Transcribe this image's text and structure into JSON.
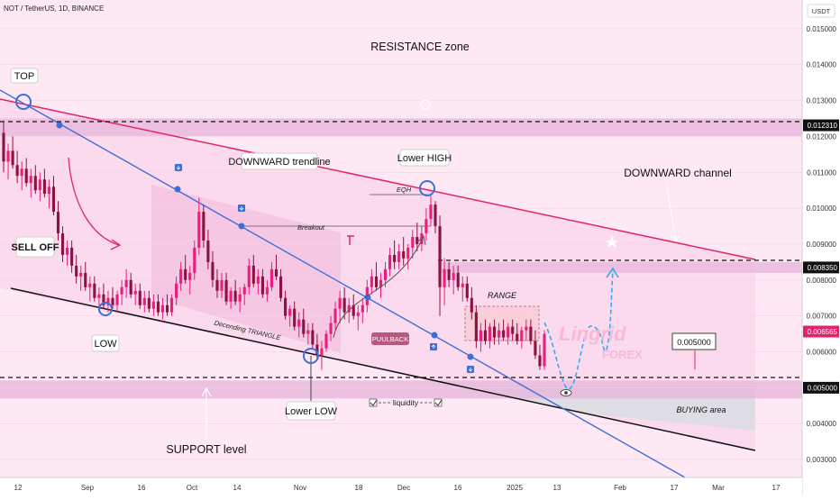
{
  "header": {
    "symbol": "NOT / TetherUS, 1D, BINANCE"
  },
  "colors": {
    "background": "#fde8f4",
    "up": "#e91e7e",
    "down": "#8c1240",
    "trend_blue": "#3e6fd8",
    "channel_red": "#e0246a",
    "support_black": "#111111",
    "zone": "#e9b8dc",
    "buying_area": "#dddde3",
    "price_tag": "#e0246a"
  },
  "chart_data": {
    "type": "candlestick",
    "currency": "USDT",
    "y_ticks": [
      "0.015000",
      "0.014000",
      "0.013000",
      "0.012000",
      "0.011000",
      "0.010000",
      "0.009000",
      "0.008000",
      "0.007000",
      "0.006000",
      "0.005000",
      "0.004000",
      "0.003000"
    ],
    "ylim": [
      0.0025,
      0.0158
    ],
    "x_ticks": [
      "12",
      "Sep",
      "16",
      "Oct",
      "14",
      "Nov",
      "18",
      "Dec",
      "16",
      "2025",
      "13",
      "Feb",
      "17",
      "Mar",
      "17"
    ],
    "price_tags": {
      "top_level": "0.012310",
      "mid_level": "0.008350",
      "current": "0.006565",
      "support": "0.005000"
    },
    "levels": {
      "resistance_band": [
        0.012,
        0.0125
      ],
      "mid_band": [
        0.0082,
        0.0085
      ],
      "support_band": [
        0.0047,
        0.0052
      ],
      "range_box": [
        0.0058,
        0.0069
      ]
    },
    "candles": [
      [
        0.0121,
        0.0124,
        0.011,
        0.0113
      ],
      [
        0.0113,
        0.0118,
        0.0108,
        0.0116
      ],
      [
        0.0116,
        0.012,
        0.0111,
        0.0112
      ],
      [
        0.0112,
        0.0116,
        0.0107,
        0.0109
      ],
      [
        0.0109,
        0.0113,
        0.0105,
        0.0111
      ],
      [
        0.0111,
        0.0114,
        0.0106,
        0.0107
      ],
      [
        0.0107,
        0.0111,
        0.0103,
        0.0109
      ],
      [
        0.0109,
        0.0112,
        0.0104,
        0.0105
      ],
      [
        0.0105,
        0.011,
        0.0102,
        0.0108
      ],
      [
        0.0108,
        0.0111,
        0.0103,
        0.0104
      ],
      [
        0.0104,
        0.0108,
        0.01,
        0.0106
      ],
      [
        0.0106,
        0.0109,
        0.0098,
        0.0099
      ],
      [
        0.0099,
        0.0102,
        0.0091,
        0.0093
      ],
      [
        0.0093,
        0.0095,
        0.0085,
        0.0087
      ],
      [
        0.0087,
        0.0091,
        0.0084,
        0.0089
      ],
      [
        0.0089,
        0.0091,
        0.0082,
        0.0084
      ],
      [
        0.0084,
        0.0087,
        0.0079,
        0.0081
      ],
      [
        0.0081,
        0.0084,
        0.0077,
        0.0082
      ],
      [
        0.0082,
        0.0085,
        0.0077,
        0.0078
      ],
      [
        0.0078,
        0.0081,
        0.0074,
        0.0079
      ],
      [
        0.0079,
        0.0081,
        0.0074,
        0.0075
      ],
      [
        0.0075,
        0.0078,
        0.0071,
        0.0076
      ],
      [
        0.0076,
        0.0079,
        0.0072,
        0.0073
      ],
      [
        0.0073,
        0.0077,
        0.0071,
        0.0075
      ],
      [
        0.0075,
        0.0078,
        0.0072,
        0.0073
      ],
      [
        0.0073,
        0.0077,
        0.0071,
        0.0076
      ],
      [
        0.0076,
        0.008,
        0.0073,
        0.0078
      ],
      [
        0.0078,
        0.0083,
        0.0075,
        0.008
      ],
      [
        0.008,
        0.0082,
        0.0075,
        0.0076
      ],
      [
        0.0076,
        0.0079,
        0.0073,
        0.0077
      ],
      [
        0.0077,
        0.0079,
        0.0072,
        0.0073
      ],
      [
        0.0073,
        0.0077,
        0.0071,
        0.0075
      ],
      [
        0.0075,
        0.0077,
        0.0071,
        0.0072
      ],
      [
        0.0072,
        0.0076,
        0.007,
        0.0074
      ],
      [
        0.0074,
        0.0076,
        0.007,
        0.0071
      ],
      [
        0.0071,
        0.0075,
        0.0069,
        0.0073
      ],
      [
        0.0073,
        0.0076,
        0.007,
        0.0071
      ],
      [
        0.0071,
        0.0076,
        0.007,
        0.0075
      ],
      [
        0.0075,
        0.0081,
        0.0073,
        0.0079
      ],
      [
        0.0079,
        0.0085,
        0.0077,
        0.0083
      ],
      [
        0.0083,
        0.0087,
        0.0079,
        0.008
      ],
      [
        0.008,
        0.0084,
        0.0076,
        0.0082
      ],
      [
        0.0082,
        0.0091,
        0.008,
        0.0089
      ],
      [
        0.0089,
        0.0103,
        0.0087,
        0.0099
      ],
      [
        0.0099,
        0.0101,
        0.0089,
        0.0091
      ],
      [
        0.0091,
        0.0094,
        0.0083,
        0.0085
      ],
      [
        0.0085,
        0.0088,
        0.0078,
        0.008
      ],
      [
        0.008,
        0.0083,
        0.0075,
        0.0077
      ],
      [
        0.0077,
        0.0082,
        0.0075,
        0.008
      ],
      [
        0.008,
        0.0082,
        0.0073,
        0.0074
      ],
      [
        0.0074,
        0.0078,
        0.0072,
        0.0077
      ],
      [
        0.0077,
        0.008,
        0.0073,
        0.0074
      ],
      [
        0.0074,
        0.0078,
        0.0071,
        0.0076
      ],
      [
        0.0076,
        0.0079,
        0.0073,
        0.0078
      ],
      [
        0.0078,
        0.0086,
        0.0076,
        0.0084
      ],
      [
        0.0084,
        0.0087,
        0.0078,
        0.0079
      ],
      [
        0.0079,
        0.0083,
        0.0076,
        0.0081
      ],
      [
        0.0081,
        0.0083,
        0.0075,
        0.0076
      ],
      [
        0.0076,
        0.008,
        0.0074,
        0.0078
      ],
      [
        0.0078,
        0.0085,
        0.0077,
        0.0083
      ],
      [
        0.0083,
        0.0087,
        0.008,
        0.0081
      ],
      [
        0.0081,
        0.0083,
        0.0074,
        0.0075
      ],
      [
        0.0075,
        0.0077,
        0.0069,
        0.007
      ],
      [
        0.007,
        0.0073,
        0.0067,
        0.0072
      ],
      [
        0.0072,
        0.0074,
        0.0066,
        0.0067
      ],
      [
        0.0067,
        0.0071,
        0.0064,
        0.0069
      ],
      [
        0.0069,
        0.0072,
        0.0064,
        0.0065
      ],
      [
        0.0065,
        0.0068,
        0.0062,
        0.0066
      ],
      [
        0.0066,
        0.0068,
        0.0061,
        0.0062
      ],
      [
        0.0062,
        0.0065,
        0.0058,
        0.0059
      ],
      [
        0.0059,
        0.0063,
        0.0055,
        0.0061
      ],
      [
        0.0061,
        0.0066,
        0.006,
        0.0065
      ],
      [
        0.0065,
        0.007,
        0.0063,
        0.0068
      ],
      [
        0.0068,
        0.0074,
        0.0066,
        0.0072
      ],
      [
        0.0072,
        0.0077,
        0.0068,
        0.0075
      ],
      [
        0.0075,
        0.0078,
        0.0069,
        0.0071
      ],
      [
        0.0071,
        0.0075,
        0.0068,
        0.0073
      ],
      [
        0.0073,
        0.0076,
        0.0069,
        0.007
      ],
      [
        0.007,
        0.0073,
        0.0066,
        0.0071
      ],
      [
        0.0071,
        0.0075,
        0.0068,
        0.0073
      ],
      [
        0.0073,
        0.008,
        0.0071,
        0.0078
      ],
      [
        0.0078,
        0.0083,
        0.0076,
        0.0081
      ],
      [
        0.0081,
        0.0085,
        0.0077,
        0.0078
      ],
      [
        0.0078,
        0.0082,
        0.0075,
        0.008
      ],
      [
        0.008,
        0.0085,
        0.0078,
        0.0083
      ],
      [
        0.0083,
        0.0089,
        0.0081,
        0.0087
      ],
      [
        0.0087,
        0.0091,
        0.0083,
        0.0085
      ],
      [
        0.0085,
        0.009,
        0.0083,
        0.0088
      ],
      [
        0.0088,
        0.0092,
        0.0084,
        0.0086
      ],
      [
        0.0086,
        0.009,
        0.0083,
        0.0089
      ],
      [
        0.0089,
        0.0094,
        0.0086,
        0.0092
      ],
      [
        0.0092,
        0.0096,
        0.0088,
        0.009
      ],
      [
        0.009,
        0.0095,
        0.0088,
        0.0093
      ],
      [
        0.0093,
        0.01,
        0.0091,
        0.0097
      ],
      [
        0.0097,
        0.0104,
        0.0095,
        0.0101
      ],
      [
        0.0101,
        0.0102,
        0.0093,
        0.0095
      ],
      [
        0.0095,
        0.0098,
        0.007,
        0.0078
      ],
      [
        0.0078,
        0.0086,
        0.0073,
        0.0083
      ],
      [
        0.0083,
        0.0085,
        0.0078,
        0.008
      ],
      [
        0.008,
        0.0084,
        0.0076,
        0.0082
      ],
      [
        0.0082,
        0.0084,
        0.0077,
        0.0078
      ],
      [
        0.0078,
        0.0081,
        0.0074,
        0.0079
      ],
      [
        0.0079,
        0.0081,
        0.0074,
        0.0075
      ],
      [
        0.0075,
        0.0078,
        0.0069,
        0.0071
      ],
      [
        0.0071,
        0.0073,
        0.0061,
        0.0063
      ],
      [
        0.0063,
        0.0068,
        0.006,
        0.0066
      ],
      [
        0.0066,
        0.0069,
        0.0062,
        0.0063
      ],
      [
        0.0063,
        0.0068,
        0.0061,
        0.0067
      ],
      [
        0.0067,
        0.0069,
        0.0062,
        0.0064
      ],
      [
        0.0064,
        0.0068,
        0.0062,
        0.0066
      ],
      [
        0.0066,
        0.0069,
        0.0063,
        0.0064
      ],
      [
        0.0064,
        0.0068,
        0.0062,
        0.0067
      ],
      [
        0.0067,
        0.0069,
        0.0063,
        0.0065
      ],
      [
        0.0065,
        0.0068,
        0.0062,
        0.0063
      ],
      [
        0.0063,
        0.0067,
        0.0061,
        0.0066
      ],
      [
        0.0066,
        0.0069,
        0.0063,
        0.0067
      ],
      [
        0.0067,
        0.0069,
        0.0062,
        0.0063
      ],
      [
        0.0063,
        0.0066,
        0.0058,
        0.0059
      ],
      [
        0.0059,
        0.0062,
        0.0055,
        0.0056
      ],
      [
        0.0056,
        0.0066,
        0.0055,
        0.0065
      ]
    ]
  },
  "annotations": {
    "resistance_zone": "RESISTANCE zone",
    "top": "TOP",
    "sell_off": "SELL OFF",
    "low": "LOW",
    "downward_trendline": "DOWNWARD trendline",
    "breakout": "Breakout",
    "decending_triangle": "Decending TRIANGLE",
    "lower_low": "Lower LOW",
    "support_level": "SUPPORT level",
    "pullback": "PUULBACK",
    "liquidity": "liquidity",
    "lower_high": "Lower HIGH",
    "eqh": "EQH",
    "range": "RANGE",
    "downward_channel": "DOWNWARD channel",
    "buying_area": "BUYING area",
    "target_box": "0.005000",
    "watermark_top": "Lingrid",
    "watermark_bottom": "FOREX"
  }
}
